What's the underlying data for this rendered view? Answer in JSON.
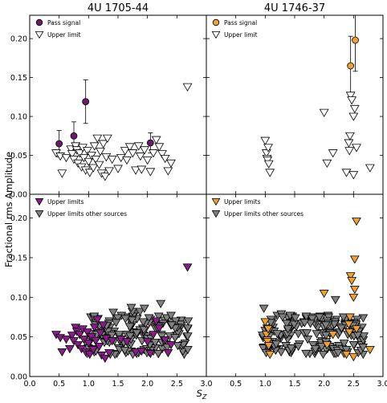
{
  "chart_data": {
    "type": "scatter",
    "ylabel": "Fractional rms Amplitude",
    "xlabel": "S_Z",
    "xlim": [
      0.0,
      3.0
    ],
    "ylim": [
      0.0,
      0.23
    ],
    "x_ticks": [
      "0.0",
      "0.5",
      "1.0",
      "1.5",
      "2.0",
      "2.5",
      "3.0"
    ],
    "y_ticks": [
      "0.00",
      "0.05",
      "0.10",
      "0.15",
      "0.20"
    ],
    "grid": false,
    "panels": [
      {
        "id": "top-left",
        "title": "4U 1705-44",
        "legend_position": "top-left",
        "series": [
          {
            "name": "Pass signal",
            "marker": "circle",
            "color": "#6b1a6b",
            "points": [
              {
                "x": 0.5,
                "y": 0.065,
                "err": 0.017
              },
              {
                "x": 0.75,
                "y": 0.075,
                "err": 0.018
              },
              {
                "x": 0.95,
                "y": 0.119,
                "err": 0.028
              },
              {
                "x": 2.05,
                "y": 0.066,
                "err": 0.013
              }
            ]
          },
          {
            "name": "Upper limit",
            "marker": "triangle-down-open",
            "color": "#ffffff",
            "points": [
              [
                0.45,
                0.053
              ],
              [
                0.52,
                0.049
              ],
              [
                0.55,
                0.027
              ],
              [
                0.62,
                0.047
              ],
              [
                0.7,
                0.058
              ],
              [
                0.72,
                0.052
              ],
              [
                0.75,
                0.045
              ],
              [
                0.78,
                0.062
              ],
              [
                0.8,
                0.057
              ],
              [
                0.82,
                0.04
              ],
              [
                0.85,
                0.053
              ],
              [
                0.88,
                0.035
              ],
              [
                0.9,
                0.06
              ],
              [
                0.92,
                0.047
              ],
              [
                0.95,
                0.031
              ],
              [
                0.98,
                0.056
              ],
              [
                1.0,
                0.042
              ],
              [
                1.02,
                0.028
              ],
              [
                1.05,
                0.05
              ],
              [
                1.08,
                0.034
              ],
              [
                1.1,
                0.062
              ],
              [
                1.12,
                0.045
              ],
              [
                1.15,
                0.072
              ],
              [
                1.18,
                0.038
              ],
              [
                1.2,
                0.055
              ],
              [
                1.22,
                0.027
              ],
              [
                1.25,
                0.065
              ],
              [
                1.28,
                0.023
              ],
              [
                1.3,
                0.048
              ],
              [
                1.32,
                0.072
              ],
              [
                1.35,
                0.03
              ],
              [
                1.4,
                0.045
              ],
              [
                1.5,
                0.033
              ],
              [
                1.55,
                0.047
              ],
              [
                1.62,
                0.056
              ],
              [
                1.65,
                0.044
              ],
              [
                1.7,
                0.061
              ],
              [
                1.75,
                0.053
              ],
              [
                1.8,
                0.031
              ],
              [
                1.85,
                0.062
              ],
              [
                1.88,
                0.049
              ],
              [
                1.9,
                0.032
              ],
              [
                1.95,
                0.057
              ],
              [
                2.0,
                0.044
              ],
              [
                2.05,
                0.029
              ],
              [
                2.1,
                0.053
              ],
              [
                2.15,
                0.07
              ],
              [
                2.2,
                0.061
              ],
              [
                2.25,
                0.052
              ],
              [
                2.3,
                0.046
              ],
              [
                2.35,
                0.03
              ],
              [
                2.4,
                0.04
              ],
              [
                2.68,
                0.138
              ]
            ]
          }
        ]
      },
      {
        "id": "top-right",
        "title": "4U 1746-37",
        "legend_position": "top-left",
        "series": [
          {
            "name": "Pass signal",
            "marker": "circle",
            "color": "#f0a030",
            "points": [
              {
                "x": 2.45,
                "y": 0.165,
                "err": 0.038
              },
              {
                "x": 2.53,
                "y": 0.198,
                "err": 0.04
              }
            ]
          },
          {
            "name": "Upper limit",
            "marker": "triangle-down-open",
            "color": "#ffffff",
            "points": [
              [
                1.0,
                0.069
              ],
              [
                1.02,
                0.053
              ],
              [
                1.03,
                0.046
              ],
              [
                1.04,
                0.044
              ],
              [
                1.06,
                0.039
              ],
              [
                1.05,
                0.06
              ],
              [
                1.08,
                0.028
              ],
              [
                2.0,
                0.105
              ],
              [
                2.05,
                0.04
              ],
              [
                2.15,
                0.053
              ],
              [
                2.38,
                0.028
              ],
              [
                2.42,
                0.066
              ],
              [
                2.43,
                0.056
              ],
              [
                2.44,
                0.075
              ],
              [
                2.45,
                0.127
              ],
              [
                2.47,
                0.121
              ],
              [
                2.5,
                0.1
              ],
              [
                2.52,
                0.11
              ],
              [
                2.55,
                0.06
              ],
              [
                2.5,
                0.025
              ],
              [
                2.78,
                0.034
              ]
            ]
          }
        ]
      },
      {
        "id": "bottom-left",
        "title": "",
        "legend_position": "top-left",
        "series": [
          {
            "name": "Upper limits",
            "marker": "triangle-down-filled",
            "color": "#8b1a8b",
            "points": [
              [
                0.45,
                0.053
              ],
              [
                0.52,
                0.049
              ],
              [
                0.55,
                0.031
              ],
              [
                0.62,
                0.047
              ],
              [
                0.68,
                0.035
              ],
              [
                0.72,
                0.052
              ],
              [
                0.75,
                0.045
              ],
              [
                0.78,
                0.062
              ],
              [
                0.8,
                0.057
              ],
              [
                0.82,
                0.04
              ],
              [
                0.85,
                0.053
              ],
              [
                0.88,
                0.035
              ],
              [
                0.9,
                0.06
              ],
              [
                0.92,
                0.047
              ],
              [
                0.95,
                0.031
              ],
              [
                0.98,
                0.056
              ],
              [
                1.0,
                0.042
              ],
              [
                1.02,
                0.028
              ],
              [
                1.05,
                0.05
              ],
              [
                1.08,
                0.034
              ],
              [
                1.1,
                0.062
              ],
              [
                1.12,
                0.045
              ],
              [
                1.15,
                0.072
              ],
              [
                1.18,
                0.038
              ],
              [
                1.2,
                0.055
              ],
              [
                1.22,
                0.027
              ],
              [
                1.25,
                0.065
              ],
              [
                1.28,
                0.023
              ],
              [
                1.3,
                0.048
              ],
              [
                1.35,
                0.03
              ],
              [
                1.4,
                0.045
              ],
              [
                1.55,
                0.047
              ],
              [
                1.65,
                0.044
              ],
              [
                1.8,
                0.031
              ],
              [
                1.9,
                0.032
              ],
              [
                2.0,
                0.044
              ],
              [
                2.05,
                0.029
              ],
              [
                2.1,
                0.053
              ],
              [
                2.15,
                0.07
              ],
              [
                2.2,
                0.061
              ],
              [
                2.3,
                0.046
              ],
              [
                2.35,
                0.03
              ],
              [
                2.4,
                0.04
              ],
              [
                2.68,
                0.138
              ]
            ]
          },
          {
            "name": "Upper limits other sources",
            "marker": "triangle-down-filled",
            "color": "#808080",
            "points": []
          }
        ]
      },
      {
        "id": "bottom-right",
        "title": "",
        "legend_position": "top-left",
        "series": [
          {
            "name": "Upper limits",
            "marker": "triangle-down-filled",
            "color": "#f0a030",
            "points": [
              [
                1.0,
                0.069
              ],
              [
                1.02,
                0.053
              ],
              [
                1.03,
                0.046
              ],
              [
                1.04,
                0.044
              ],
              [
                1.06,
                0.039
              ],
              [
                1.05,
                0.06
              ],
              [
                1.08,
                0.028
              ],
              [
                2.0,
                0.105
              ],
              [
                2.05,
                0.04
              ],
              [
                2.15,
                0.053
              ],
              [
                2.38,
                0.028
              ],
              [
                2.42,
                0.066
              ],
              [
                2.43,
                0.056
              ],
              [
                2.44,
                0.075
              ],
              [
                2.45,
                0.127
              ],
              [
                2.47,
                0.121
              ],
              [
                2.5,
                0.1
              ],
              [
                2.52,
                0.11
              ],
              [
                2.55,
                0.06
              ],
              [
                2.5,
                0.025
              ],
              [
                2.52,
                0.148
              ],
              [
                2.55,
                0.196
              ],
              [
                2.78,
                0.034
              ]
            ]
          },
          {
            "name": "Upper limits other sources",
            "marker": "triangle-down-filled",
            "color": "#808080",
            "points": []
          }
        ]
      }
    ]
  }
}
